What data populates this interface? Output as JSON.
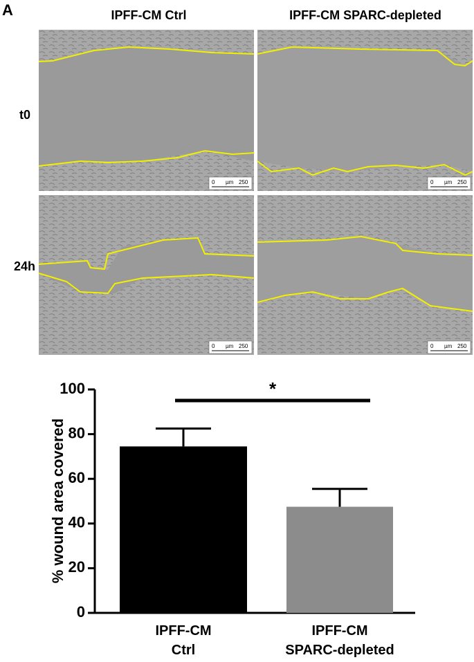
{
  "figure": {
    "panel_label": "A",
    "column_headers": [
      "IPFF-CM Ctrl",
      "IPFF-CM SPARC-depleted"
    ],
    "row_labels": [
      "t0",
      "24h"
    ],
    "scale_bar": {
      "start": "0",
      "unit": "µm",
      "end": "250"
    }
  },
  "chart_data": {
    "type": "bar",
    "categories": [
      "IPFF-CM\nCtrl",
      "IPFF-CM\nSPARC-depleted"
    ],
    "values": [
      74.5,
      47.5
    ],
    "errors": [
      8,
      8
    ],
    "colors": [
      "#000000",
      "#8c8c8c"
    ],
    "y_label": "% wound area covered",
    "ylim": [
      0,
      100
    ],
    "yticks": [
      0,
      20,
      40,
      60,
      80,
      100
    ],
    "annotations": [
      {
        "text": "*",
        "between": [
          0,
          1
        ]
      }
    ]
  }
}
